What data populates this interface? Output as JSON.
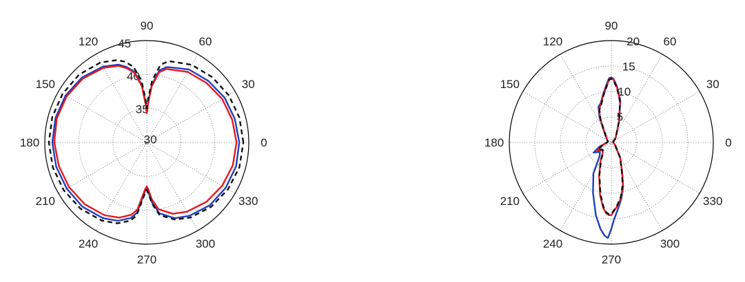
{
  "chart_data": [
    {
      "type": "polar",
      "angle_unit": "degrees",
      "angle_tick_labels": [
        "0",
        "30",
        "60",
        "90",
        "120",
        "150",
        "180",
        "210",
        "240",
        "270",
        "300",
        "330"
      ],
      "radial_range": [
        30,
        45
      ],
      "radial_tick_labels": [
        "30",
        "35",
        "40",
        "45"
      ],
      "grid": true,
      "series": [
        {
          "color": "#1f3fbf",
          "style": "solid",
          "theta": [
            0,
            15,
            30,
            45,
            60,
            75,
            80,
            85,
            88,
            90,
            92,
            95,
            100,
            105,
            110,
            120,
            135,
            150,
            165,
            180,
            195,
            210,
            225,
            240,
            250,
            258,
            262,
            265,
            268,
            270,
            272,
            275,
            280,
            290,
            300,
            315,
            330,
            345,
            360
          ],
          "r": [
            43.6,
            43.4,
            43.2,
            42.8,
            42.4,
            41.5,
            40.8,
            38.5,
            36.0,
            34.5,
            36.0,
            38.5,
            40.6,
            41.5,
            42.2,
            42.9,
            43.5,
            43.8,
            43.9,
            43.9,
            43.8,
            43.6,
            43.4,
            42.9,
            42.3,
            41.4,
            40.5,
            38.5,
            37.2,
            36.8,
            37.4,
            38.9,
            40.6,
            41.9,
            42.5,
            43.1,
            43.4,
            43.6,
            43.6
          ]
        },
        {
          "color": "#e8171c",
          "style": "solid",
          "theta": [
            0,
            15,
            30,
            45,
            60,
            75,
            80,
            85,
            88,
            90,
            92,
            95,
            100,
            105,
            110,
            120,
            135,
            150,
            165,
            180,
            195,
            210,
            225,
            240,
            250,
            258,
            262,
            265,
            268,
            270,
            272,
            275,
            280,
            290,
            300,
            315,
            330,
            345,
            360
          ],
          "r": [
            43.2,
            43.0,
            42.8,
            42.4,
            42.0,
            41.2,
            40.5,
            38.3,
            35.8,
            34.3,
            35.8,
            38.3,
            40.4,
            41.3,
            42.0,
            42.7,
            43.3,
            43.6,
            43.7,
            43.6,
            43.4,
            43.2,
            42.9,
            42.4,
            41.8,
            40.9,
            40.0,
            38.2,
            36.9,
            36.5,
            37.0,
            38.4,
            40.0,
            41.2,
            41.8,
            42.4,
            42.8,
            43.1,
            43.2
          ]
        },
        {
          "color": "#111111",
          "style": "dashed",
          "theta": [
            0,
            15,
            30,
            45,
            60,
            75,
            80,
            85,
            88,
            90,
            92,
            95,
            100,
            105,
            110,
            120,
            135,
            150,
            165,
            180,
            195,
            210,
            225,
            240,
            250,
            258,
            262,
            265,
            268,
            270,
            272,
            275,
            280,
            290,
            300,
            315,
            330,
            345,
            360
          ],
          "r": [
            44.2,
            44.1,
            43.9,
            43.6,
            43.2,
            42.4,
            41.6,
            39.2,
            36.6,
            35.0,
            36.6,
            39.2,
            41.3,
            42.3,
            42.9,
            43.6,
            44.1,
            44.3,
            44.4,
            44.4,
            44.3,
            44.1,
            43.8,
            43.3,
            42.7,
            41.8,
            40.9,
            38.9,
            37.5,
            37.0,
            37.6,
            39.1,
            40.9,
            42.1,
            42.8,
            43.4,
            43.8,
            44.1,
            44.2
          ]
        }
      ]
    },
    {
      "type": "polar",
      "angle_unit": "degrees",
      "angle_tick_labels": [
        "0",
        "30",
        "60",
        "90",
        "120",
        "150",
        "180",
        "210",
        "240",
        "270",
        "300",
        "330"
      ],
      "radial_range": [
        0,
        20
      ],
      "radial_tick_labels": [
        "5",
        "10",
        "15",
        "20"
      ],
      "grid": true,
      "series": [
        {
          "color": "#1f3fbf",
          "style": "solid",
          "theta": [
            0,
            20,
            45,
            70,
            78,
            84,
            88,
            90,
            92,
            95,
            100,
            105,
            110,
            115,
            120,
            130,
            150,
            170,
            180,
            190,
            200,
            210,
            220,
            230,
            240,
            250,
            258,
            263,
            266,
            268,
            270,
            272,
            276,
            280,
            285,
            290,
            300,
            330,
            350,
            360
          ],
          "r": [
            0.4,
            0.4,
            1.2,
            4.5,
            8.5,
            11.0,
            12.5,
            12.8,
            12.6,
            11.3,
            9.5,
            8.0,
            7.4,
            5.5,
            3.3,
            1.8,
            0.9,
            0.7,
            0.8,
            1.2,
            2.5,
            4.0,
            2.9,
            3.6,
            7.0,
            10.5,
            14.6,
            17.2,
            18.4,
            18.8,
            17.0,
            15.2,
            13.0,
            11.3,
            9.0,
            6.2,
            3.5,
            0.8,
            0.4,
            0.4
          ]
        },
        {
          "color": "#e8171c",
          "style": "solid",
          "theta": [
            0,
            20,
            45,
            70,
            78,
            84,
            88,
            90,
            92,
            95,
            100,
            105,
            110,
            115,
            120,
            130,
            150,
            170,
            180,
            190,
            200,
            210,
            220,
            230,
            240,
            250,
            258,
            263,
            266,
            268,
            270,
            272,
            276,
            280,
            285,
            290,
            300,
            330,
            350,
            360
          ],
          "r": [
            0.4,
            0.4,
            1.2,
            4.5,
            8.3,
            10.8,
            12.3,
            12.6,
            12.4,
            11.0,
            9.3,
            7.8,
            7.0,
            5.2,
            3.1,
            1.7,
            0.9,
            0.7,
            0.8,
            1.1,
            2.1,
            3.2,
            2.3,
            2.6,
            4.2,
            7.0,
            10.6,
            13.0,
            14.0,
            14.3,
            14.3,
            13.6,
            12.4,
            11.0,
            8.8,
            6.2,
            3.5,
            0.8,
            0.4,
            0.4
          ]
        },
        {
          "color": "#111111",
          "style": "dashed",
          "theta": [
            0,
            20,
            45,
            70,
            78,
            84,
            88,
            90,
            92,
            95,
            100,
            105,
            110,
            115,
            120,
            130,
            150,
            170,
            180,
            190,
            200,
            210,
            220,
            230,
            240,
            250,
            258,
            263,
            266,
            268,
            270,
            272,
            276,
            280,
            285,
            290,
            300,
            330,
            350,
            360
          ],
          "r": [
            0.4,
            0.4,
            1.2,
            4.5,
            8.2,
            10.7,
            12.2,
            12.5,
            12.3,
            10.9,
            9.2,
            7.6,
            6.8,
            5.0,
            3.0,
            1.7,
            0.9,
            0.7,
            0.8,
            1.1,
            2.0,
            3.0,
            2.2,
            2.5,
            4.0,
            6.8,
            10.3,
            12.7,
            13.8,
            14.1,
            14.1,
            13.4,
            12.2,
            10.8,
            8.6,
            6.0,
            3.4,
            0.8,
            0.4,
            0.4
          ]
        }
      ]
    }
  ]
}
